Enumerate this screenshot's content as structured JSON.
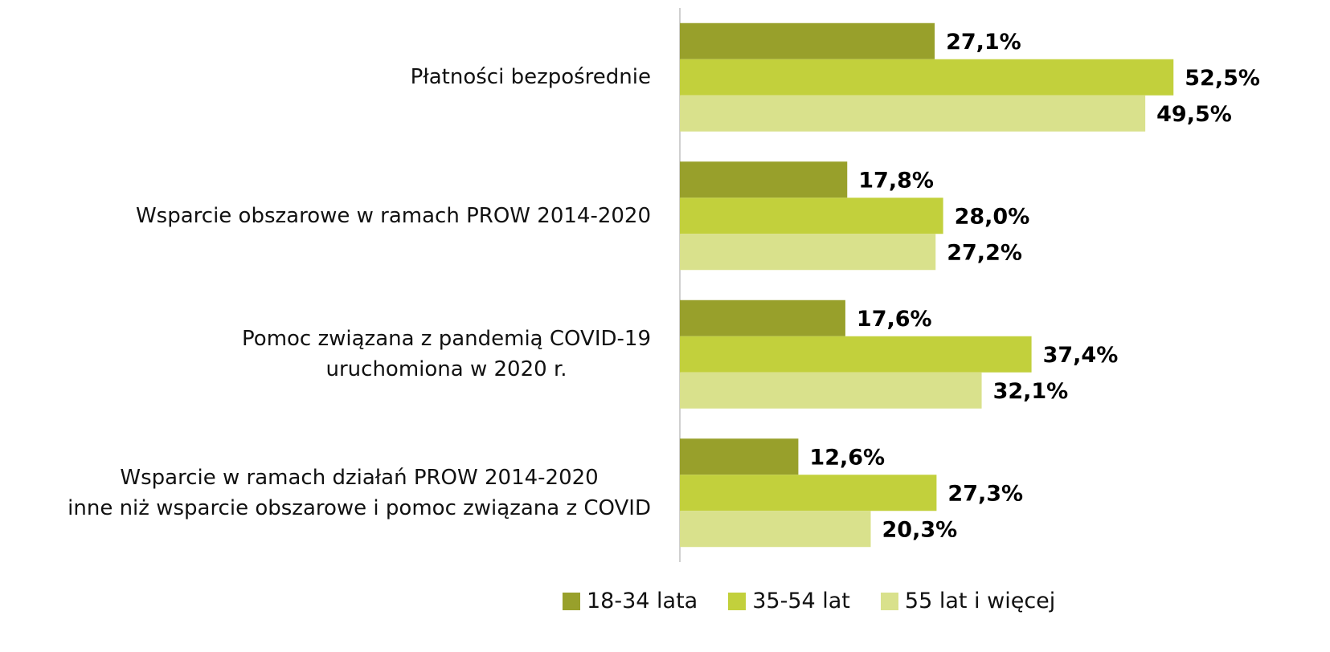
{
  "chart_data": {
    "type": "bar",
    "orientation": "horizontal",
    "categories": [
      "Płatności bezpośrednie",
      "Wsparcie obszarowe w ramach PROW 2014-2020",
      "Pomoc związana z pandemią COVID-19\nuruchomiona w 2020 r.",
      "Wsparcie w ramach działań PROW 2014-2020\ninne niż wsparcie obszarowe i pomoc związana z COVID"
    ],
    "series": [
      {
        "name": "18-34 lata",
        "color": "#98a02b",
        "values": [
          27.1,
          17.8,
          17.6,
          12.6
        ],
        "value_labels": [
          "27,1%",
          "17,8%",
          "17,6%",
          "12,6%"
        ]
      },
      {
        "name": "35-54 lat",
        "color": "#c2d03c",
        "values": [
          52.5,
          28.0,
          37.4,
          27.3
        ],
        "value_labels": [
          "52,5%",
          "28,0%",
          "37,4%",
          "27,3%"
        ]
      },
      {
        "name": "55 lat i więcej",
        "color": "#d9e18c",
        "values": [
          49.5,
          27.2,
          32.1,
          20.3
        ],
        "value_labels": [
          "49,5%",
          "27,2%",
          "32,1%",
          "20,3%"
        ]
      }
    ],
    "xlim": [
      0,
      60
    ],
    "legend": "bottom"
  }
}
